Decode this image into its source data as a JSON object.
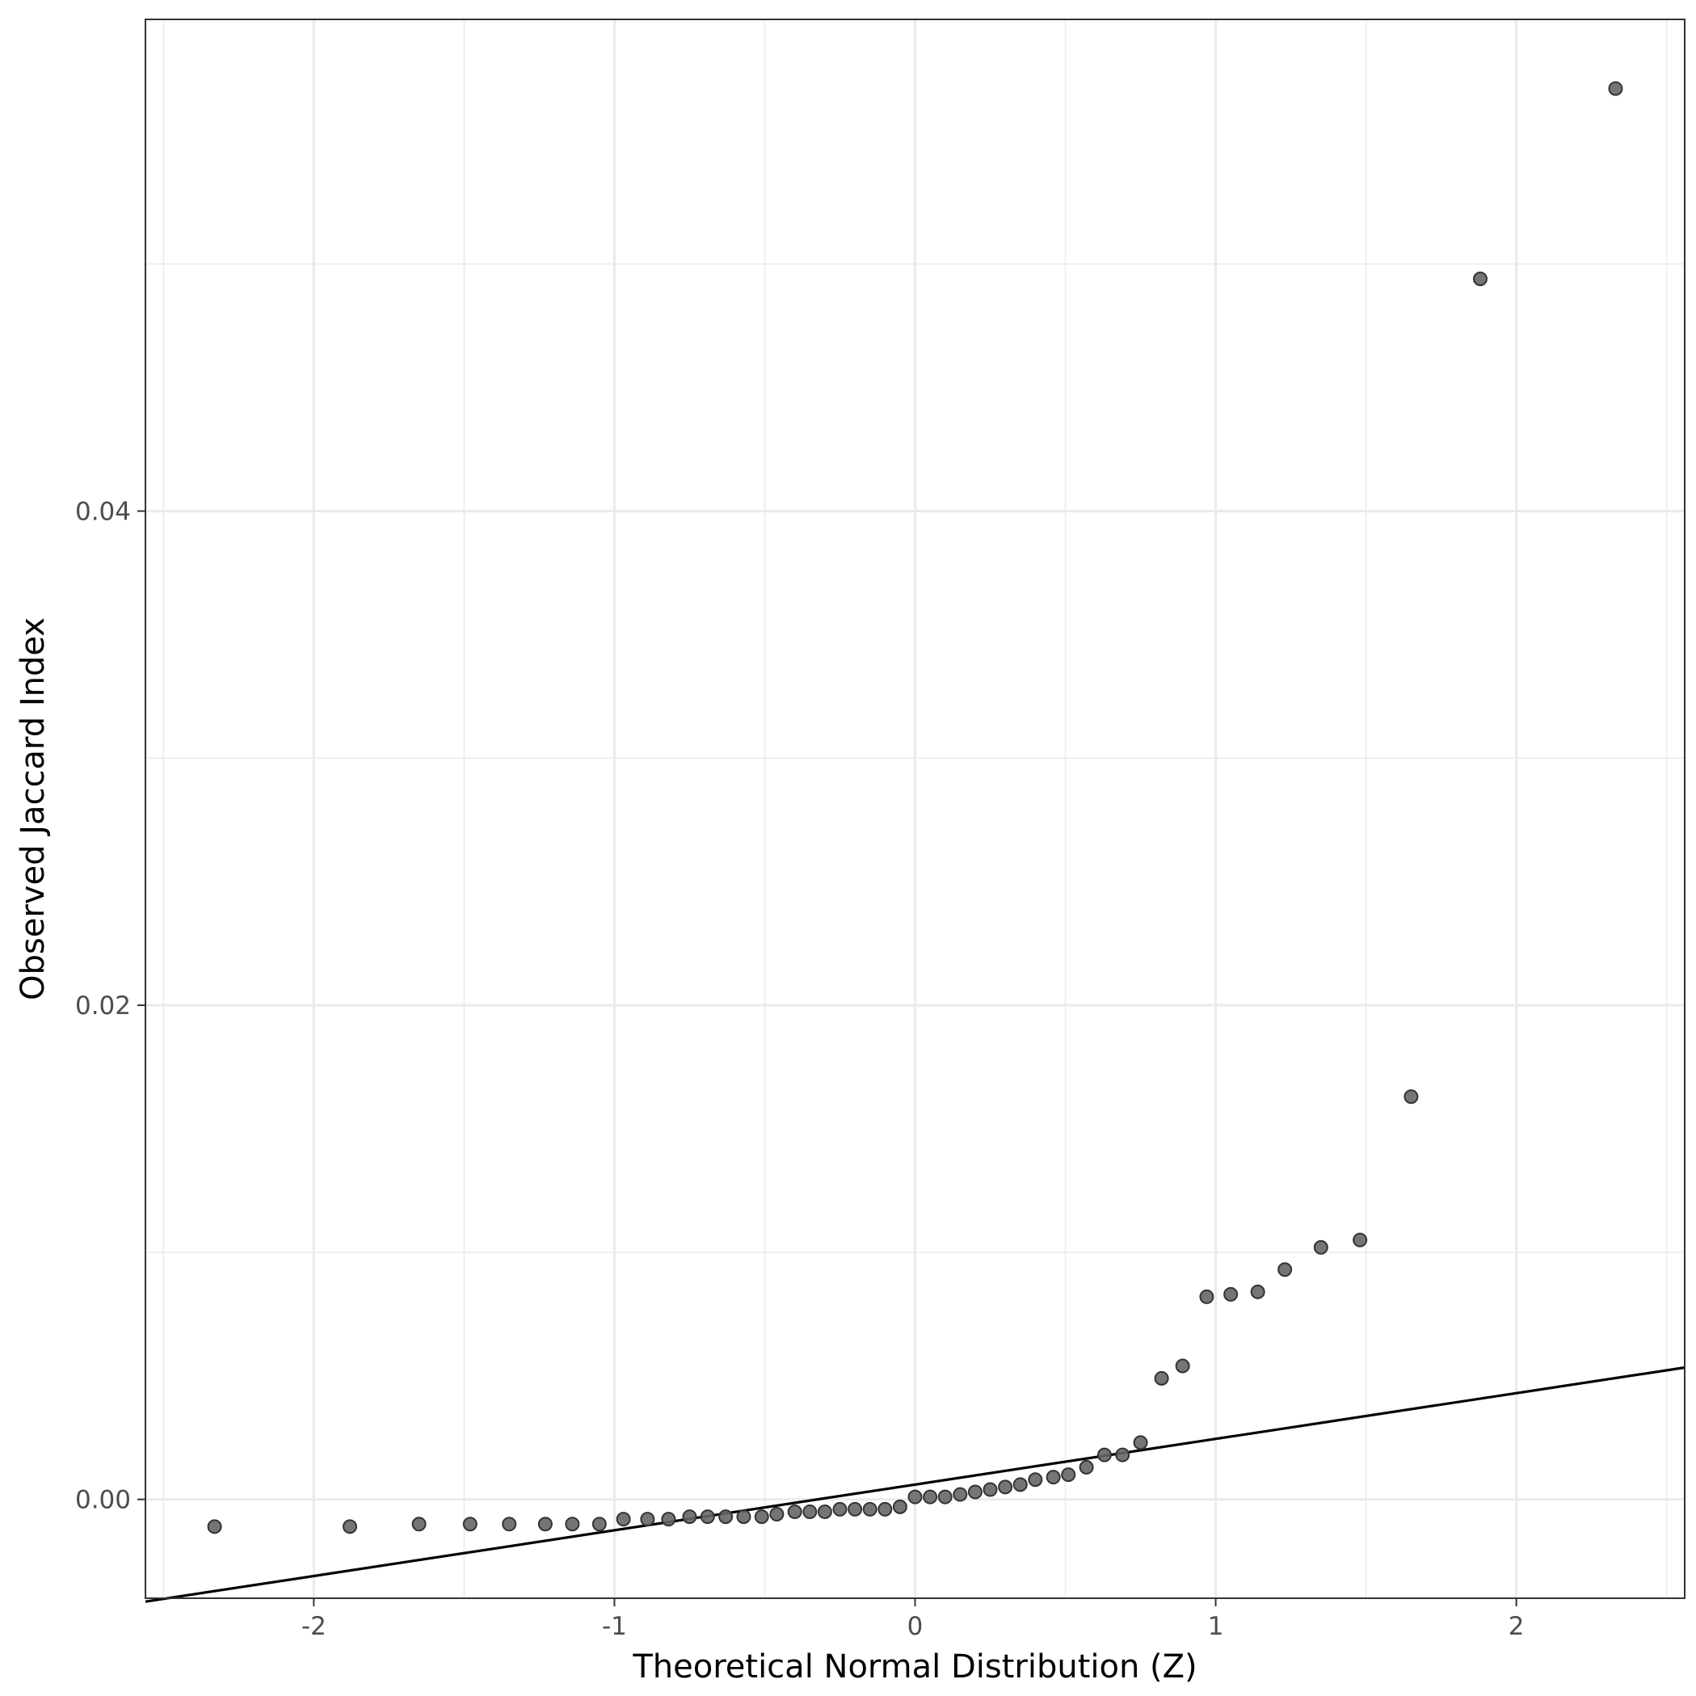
{
  "chart_data": {
    "type": "scatter",
    "xlabel": "Theoretical Normal Distribution (Z)",
    "ylabel": "Observed Jaccard Index",
    "xlim": [
      -2.56,
      2.56
    ],
    "ylim": [
      -0.004,
      0.0599
    ],
    "x_ticks": [
      -2,
      -1,
      0,
      1,
      2
    ],
    "x_tick_labels": [
      "-2",
      "-1",
      "0",
      "1",
      "2"
    ],
    "y_ticks": [
      0.0,
      0.02,
      0.04
    ],
    "y_tick_labels": [
      "0.00",
      "0.02",
      "0.04"
    ],
    "grid": true,
    "point_color": "#666666",
    "line_color": "#000000",
    "reference_line": {
      "intercept": 0.0006,
      "slope": 0.00185
    },
    "points": {
      "x": [
        -2.33,
        -1.88,
        -1.65,
        -1.48,
        -1.35,
        -1.23,
        -1.14,
        -1.05,
        -0.97,
        -0.89,
        -0.82,
        -0.75,
        -0.69,
        -0.63,
        -0.57,
        -0.51,
        -0.46,
        -0.4,
        -0.35,
        -0.3,
        -0.25,
        -0.2,
        -0.15,
        -0.1,
        -0.05,
        0.0,
        0.05,
        0.1,
        0.15,
        0.2,
        0.25,
        0.3,
        0.35,
        0.4,
        0.46,
        0.51,
        0.57,
        0.63,
        0.69,
        0.75,
        0.82,
        0.89,
        0.97,
        1.05,
        1.14,
        1.23,
        1.35,
        1.48,
        1.65,
        1.88,
        2.33
      ],
      "y": [
        -0.0011,
        -0.0011,
        -0.001,
        -0.001,
        -0.001,
        -0.001,
        -0.001,
        -0.001,
        -0.0008,
        -0.0008,
        -0.0008,
        -0.0007,
        -0.0007,
        -0.0007,
        -0.0007,
        -0.0007,
        -0.0006,
        -0.0005,
        -0.0005,
        -0.0005,
        -0.0004,
        -0.0004,
        -0.0004,
        -0.0004,
        -0.0003,
        0.0001,
        0.0001,
        0.0001,
        0.0002,
        0.0003,
        0.0004,
        0.0005,
        0.0006,
        0.0008,
        0.0009,
        0.001,
        0.0013,
        0.0018,
        0.0018,
        0.0023,
        0.0049,
        0.0054,
        0.0082,
        0.0083,
        0.0084,
        0.0093,
        0.0102,
        0.0105,
        0.0163,
        0.0494,
        0.0571
      ]
    }
  }
}
